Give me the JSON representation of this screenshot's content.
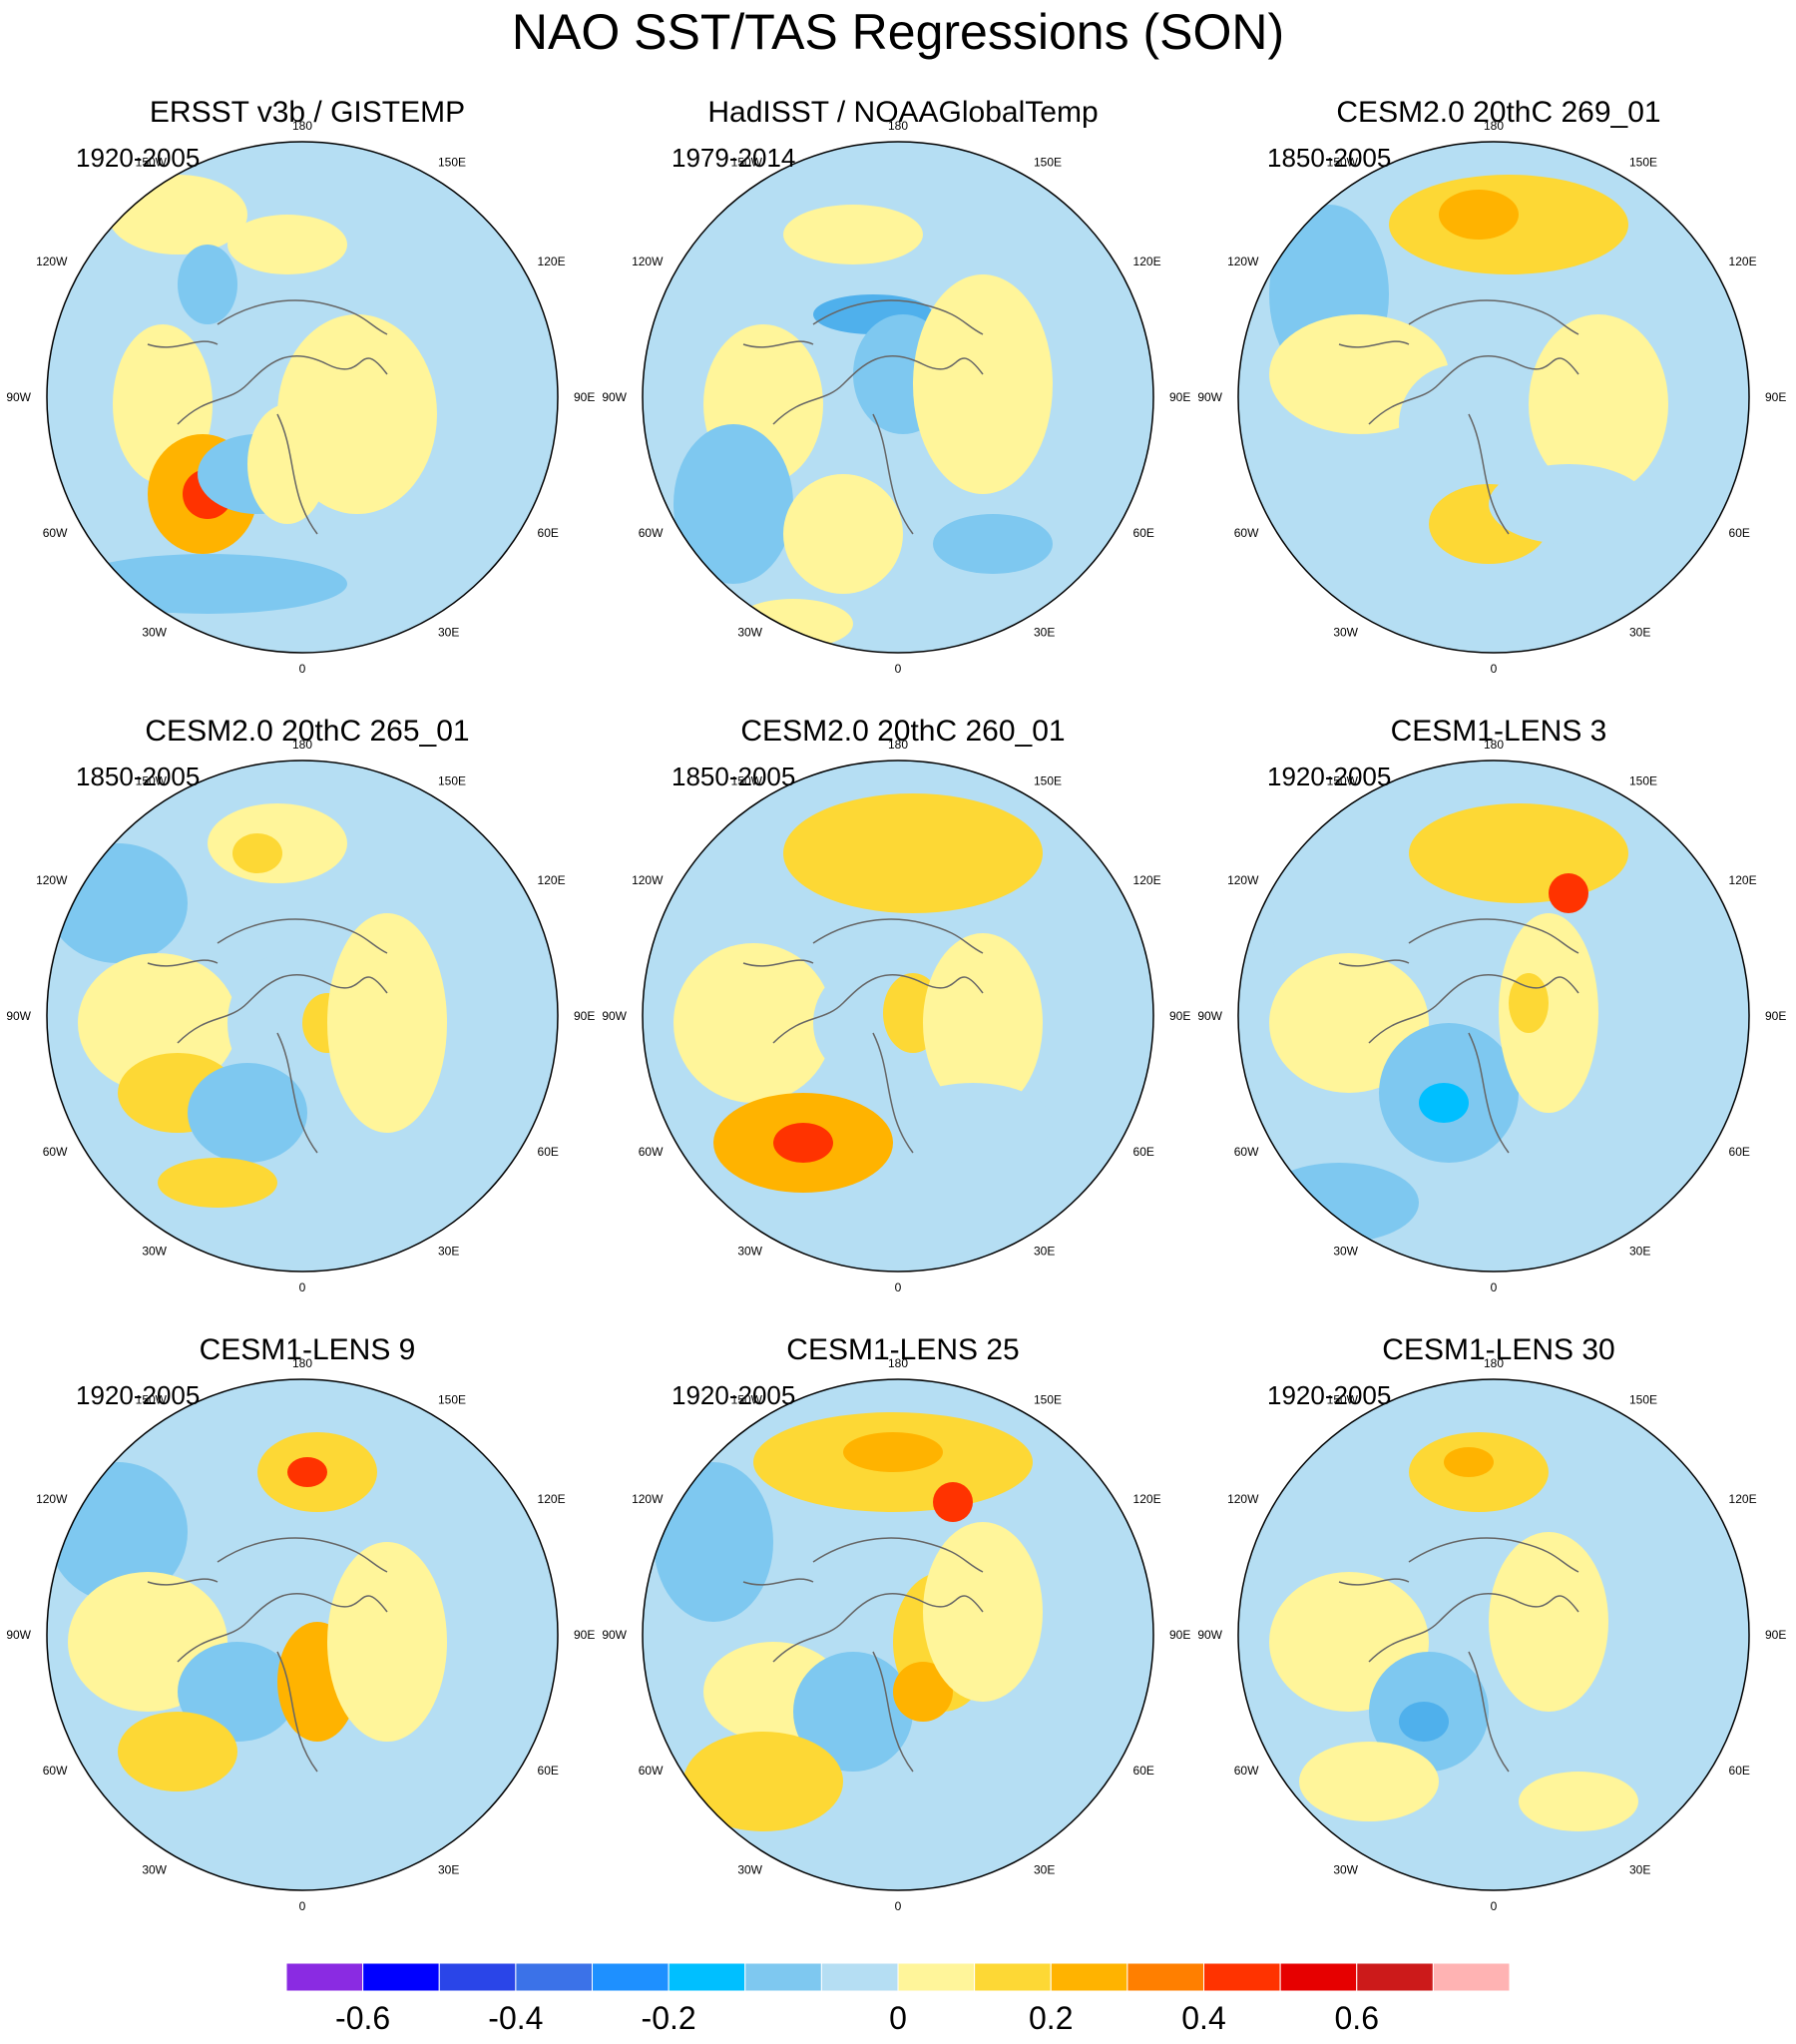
{
  "title": "NAO SST/TAS Regressions (SON)",
  "longitude_labels": [
    "180",
    "150E",
    "120E",
    "90E",
    "60E",
    "30E",
    "0",
    "30W",
    "60W",
    "90W",
    "120W",
    "150W"
  ],
  "panels": [
    {
      "name": "ERSST v3b / GISTEMP",
      "period": "1920-2005"
    },
    {
      "name": "HadISST / NOAAGlobalTemp",
      "period": "1979-2014"
    },
    {
      "name": "CESM2.0 20thC 269_01",
      "period": "1850-2005"
    },
    {
      "name": "CESM2.0 20thC 265_01",
      "period": "1850-2005"
    },
    {
      "name": "CESM2.0 20thC 260_01",
      "period": "1850-2005"
    },
    {
      "name": "CESM1-LENS 3",
      "period": "1920-2005"
    },
    {
      "name": "CESM1-LENS 9",
      "period": "1920-2005"
    },
    {
      "name": "CESM1-LENS 25",
      "period": "1920-2005"
    },
    {
      "name": "CESM1-LENS 30",
      "period": "1920-2005"
    }
  ],
  "colorbar": {
    "colors": [
      "#8a2be2",
      "#0000ff",
      "#2a45e8",
      "#3b72e8",
      "#1e90ff",
      "#00bfff",
      "#7ec8f0",
      "#b5def3",
      "#fff59a",
      "#fdd835",
      "#ffb300",
      "#ff7f00",
      "#ff3300",
      "#e60000",
      "#cc1a1a",
      "#ffb3b3"
    ],
    "labels": [
      "-0.6",
      "-0.4",
      "-0.2",
      "0",
      "0.2",
      "0.4",
      "0.6"
    ],
    "label_boundaries": [
      1,
      3,
      5,
      8,
      10,
      12,
      14
    ]
  }
}
